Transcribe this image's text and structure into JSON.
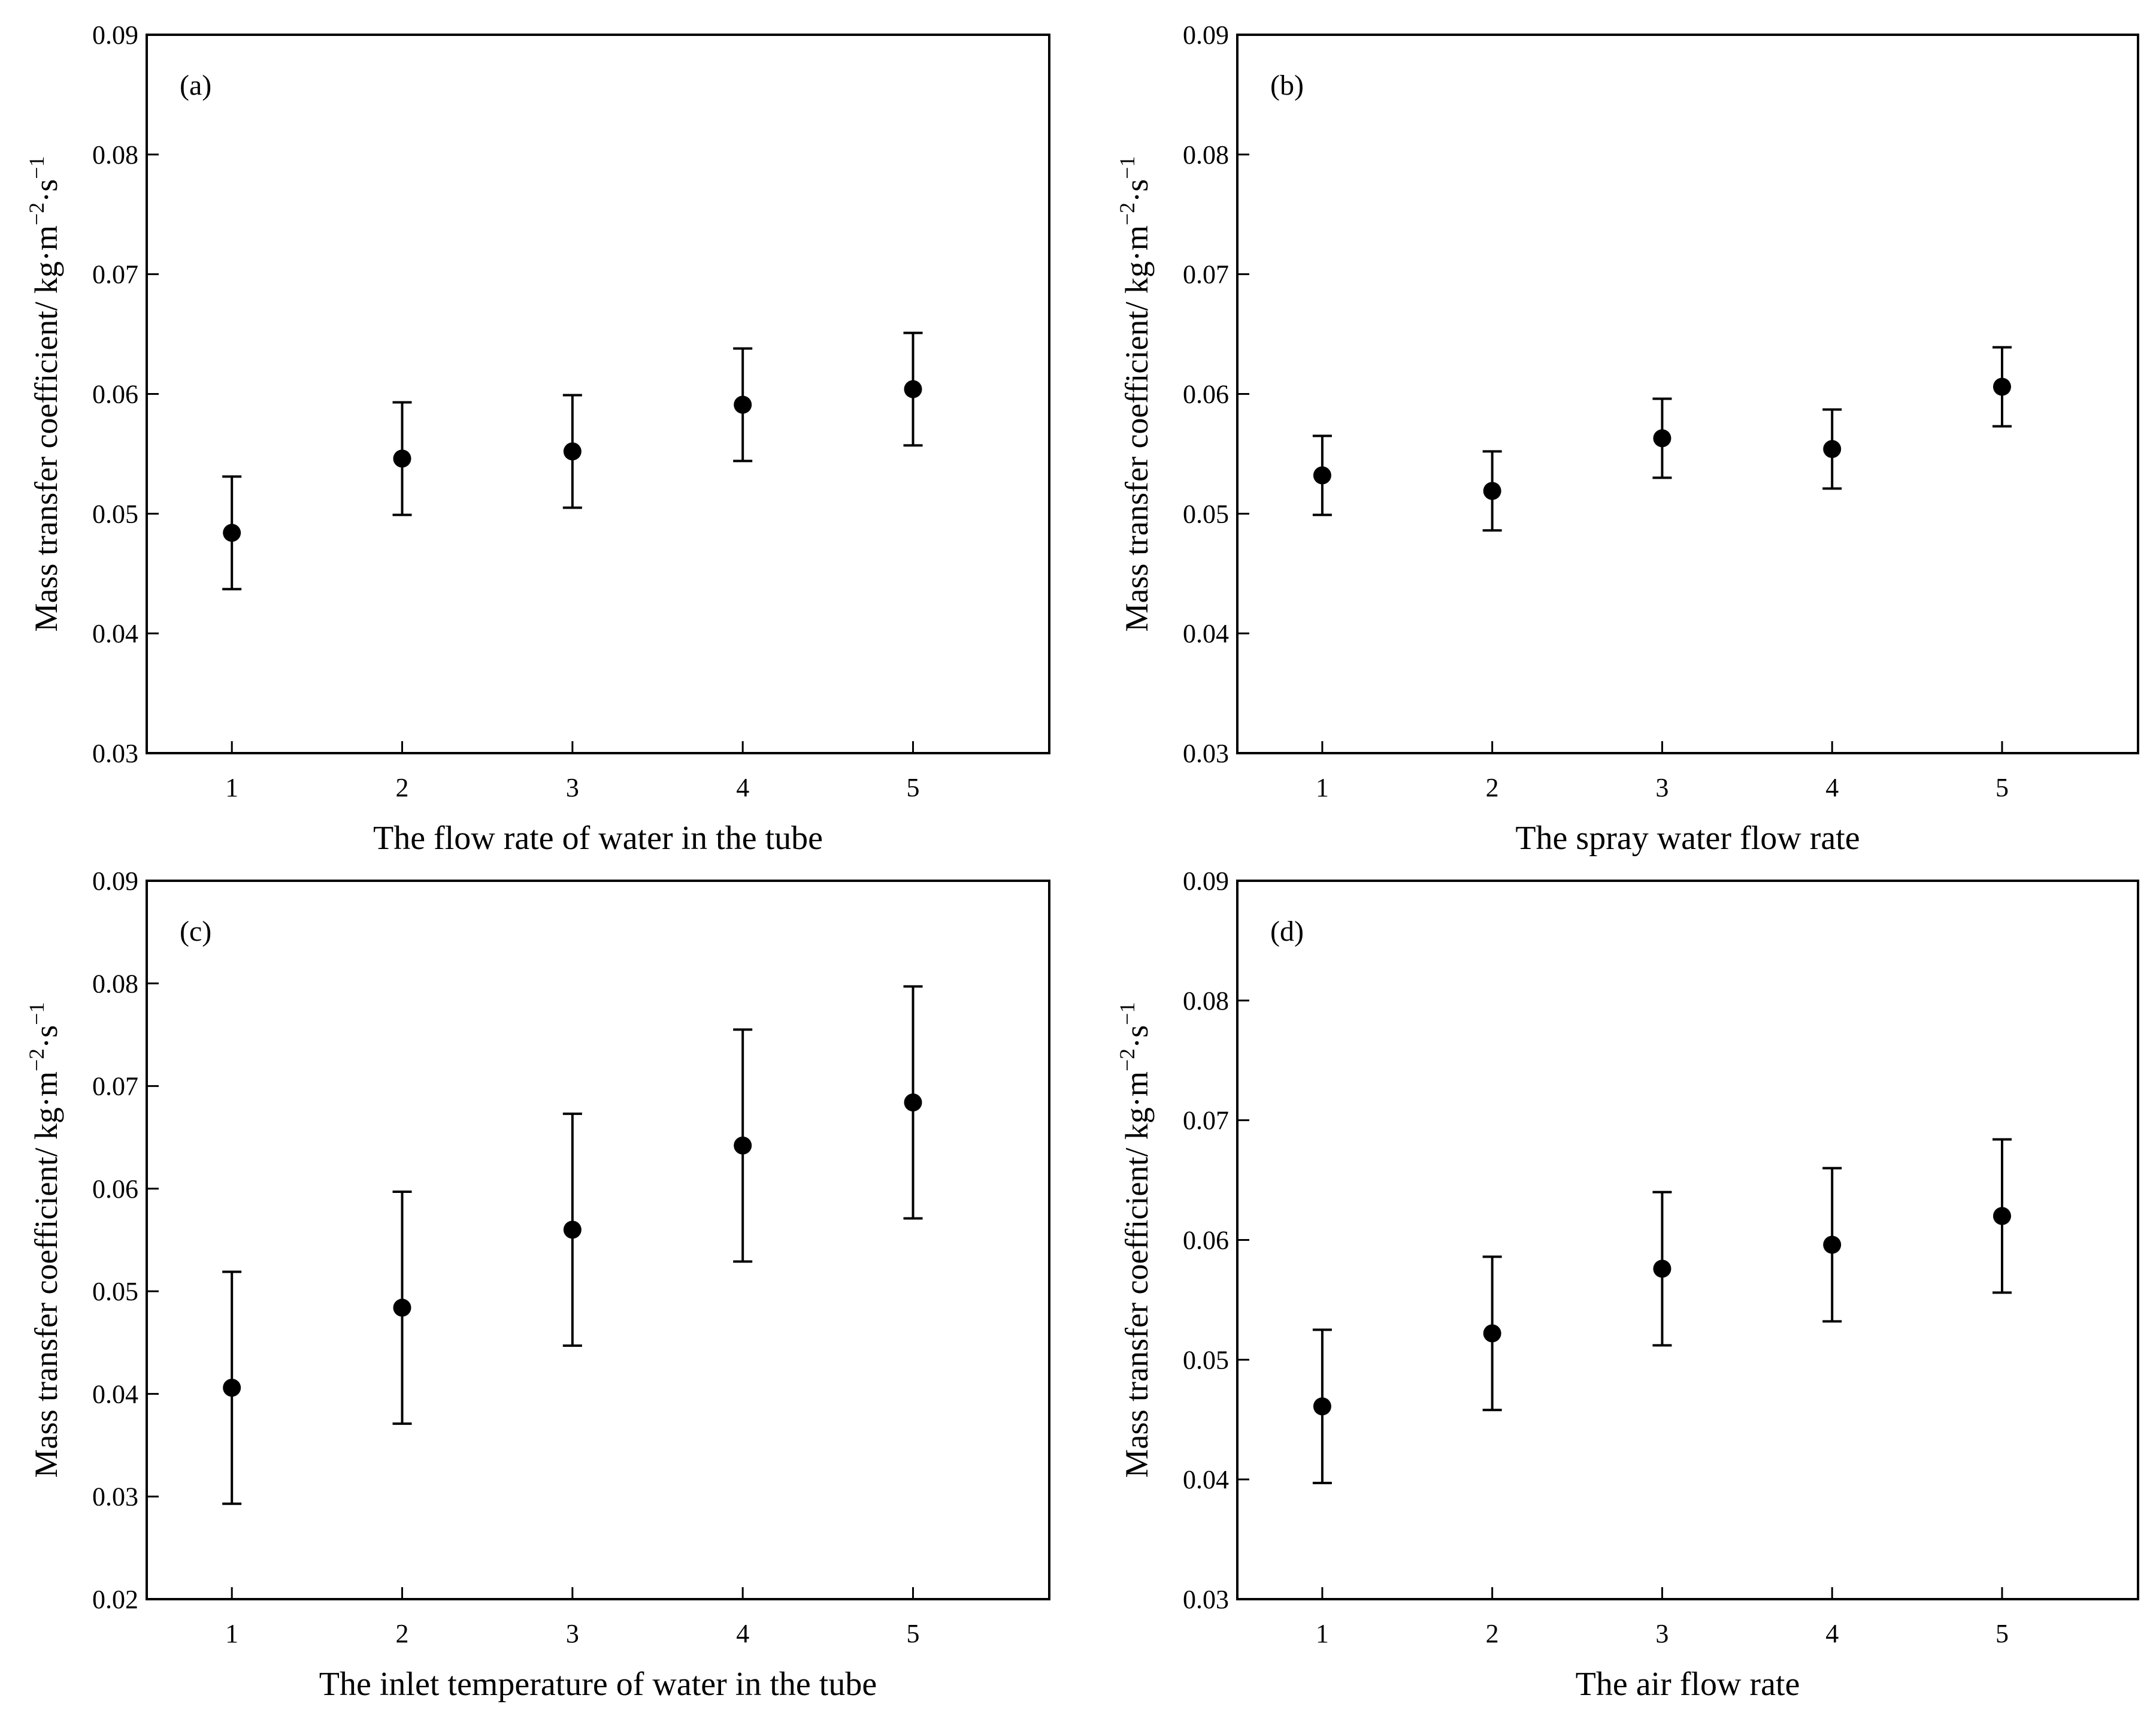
{
  "colors": {
    "ink": "#000000",
    "background": "#ffffff"
  },
  "chart_data": [
    {
      "type": "scatter",
      "panel_label": "(a)",
      "xlabel": "The flow rate of water in the tube",
      "ylabel": {
        "base": "Mass transfer coefficient/ kg·m",
        "sup1": "−2",
        "mid": "·s",
        "sup2": "−1"
      },
      "categories": [
        "1",
        "2",
        "3",
        "4",
        "5"
      ],
      "x": [
        1,
        2,
        3,
        4,
        5
      ],
      "values": [
        0.0484,
        0.0546,
        0.0552,
        0.0591,
        0.0604
      ],
      "error_low": [
        0.0437,
        0.0499,
        0.0505,
        0.0544,
        0.0557
      ],
      "error_high": [
        0.0531,
        0.0593,
        0.0599,
        0.0638,
        0.0651
      ],
      "ylim": [
        0.03,
        0.09
      ],
      "yticks": [
        0.03,
        0.04,
        0.05,
        0.06,
        0.07,
        0.08,
        0.09
      ],
      "ytick_labels": [
        "0.03",
        "0.04",
        "0.05",
        "0.06",
        "0.07",
        "0.08",
        "0.09"
      ],
      "grid": false
    },
    {
      "type": "scatter",
      "panel_label": "(b)",
      "xlabel": "The spray water flow rate",
      "ylabel": {
        "base": "Mass transfer coefficient/ kg·m",
        "sup1": "−2",
        "mid": "·s",
        "sup2": "−1"
      },
      "categories": [
        "1",
        "2",
        "3",
        "4",
        "5"
      ],
      "x": [
        1,
        2,
        3,
        4,
        5
      ],
      "values": [
        0.0532,
        0.0519,
        0.0563,
        0.0554,
        0.0606
      ],
      "error_low": [
        0.0499,
        0.0486,
        0.053,
        0.0521,
        0.0573
      ],
      "error_high": [
        0.0565,
        0.0552,
        0.0596,
        0.0587,
        0.0639
      ],
      "ylim": [
        0.03,
        0.09
      ],
      "yticks": [
        0.03,
        0.04,
        0.05,
        0.06,
        0.07,
        0.08,
        0.09
      ],
      "ytick_labels": [
        "0.03",
        "0.04",
        "0.05",
        "0.06",
        "0.07",
        "0.08",
        "0.09"
      ],
      "grid": false
    },
    {
      "type": "scatter",
      "panel_label": "(c)",
      "xlabel": "The inlet temperature of water in the tube",
      "ylabel": {
        "base": "Mass transfer coefficient/ kg·m",
        "sup1": "−2",
        "mid": "·s",
        "sup2": "−1"
      },
      "categories": [
        "1",
        "2",
        "3",
        "4",
        "5"
      ],
      "x": [
        1,
        2,
        3,
        4,
        5
      ],
      "values": [
        0.0406,
        0.0484,
        0.056,
        0.0642,
        0.0684
      ],
      "error_low": [
        0.0293,
        0.0371,
        0.0447,
        0.0529,
        0.0571
      ],
      "error_high": [
        0.0519,
        0.0597,
        0.0673,
        0.0755,
        0.0797
      ],
      "ylim": [
        0.02,
        0.09
      ],
      "yticks": [
        0.02,
        0.03,
        0.04,
        0.05,
        0.06,
        0.07,
        0.08,
        0.09
      ],
      "ytick_labels": [
        "0.02",
        "0.03",
        "0.04",
        "0.05",
        "0.06",
        "0.07",
        "0.08",
        "0.09"
      ],
      "grid": false
    },
    {
      "type": "scatter",
      "panel_label": "(d)",
      "xlabel": "The air flow rate",
      "ylabel": {
        "base": "Mass transfer coefficient/ kg·m",
        "sup1": "−2",
        "mid": "·s",
        "sup2": "−1"
      },
      "categories": [
        "1",
        "2",
        "3",
        "4",
        "5"
      ],
      "x": [
        1,
        2,
        3,
        4,
        5
      ],
      "values": [
        0.0461,
        0.0522,
        0.0576,
        0.0596,
        0.062
      ],
      "error_low": [
        0.0397,
        0.0458,
        0.0512,
        0.0532,
        0.0556
      ],
      "error_high": [
        0.0525,
        0.0586,
        0.064,
        0.066,
        0.0684
      ],
      "ylim": [
        0.03,
        0.09
      ],
      "yticks": [
        0.03,
        0.04,
        0.05,
        0.06,
        0.07,
        0.08,
        0.09
      ],
      "ytick_labels": [
        "0.03",
        "0.04",
        "0.05",
        "0.06",
        "0.07",
        "0.08",
        "0.09"
      ],
      "grid": false
    }
  ]
}
